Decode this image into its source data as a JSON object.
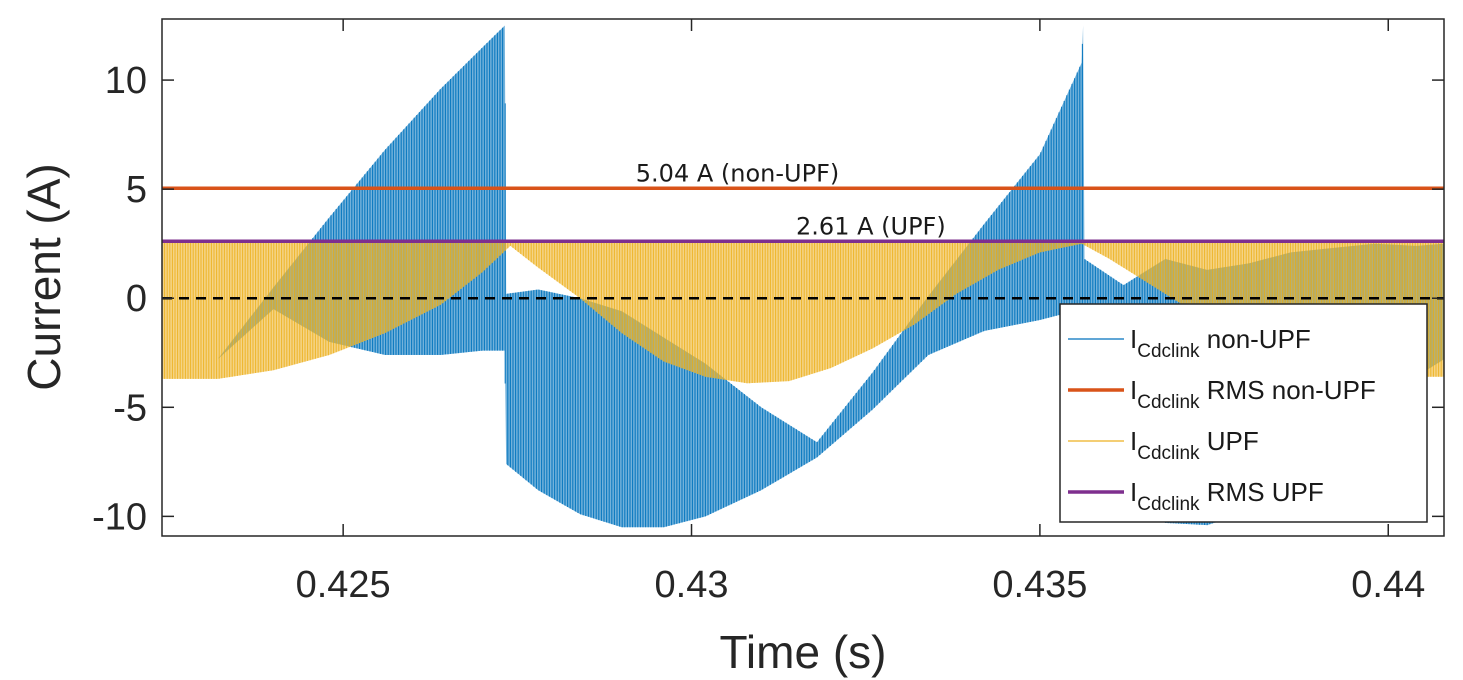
{
  "chart_data": {
    "type": "line",
    "title": "",
    "xlabel": "Time (s)",
    "ylabel": "Current (A)",
    "xlim": [
      0.4224,
      0.4408
    ],
    "ylim": [
      -10.9,
      12.8
    ],
    "xticks": [
      0.425,
      0.43,
      0.435,
      0.44
    ],
    "xtick_labels": [
      "0.425",
      "0.43",
      "0.435",
      "0.44"
    ],
    "yticks": [
      -10,
      -5,
      0,
      5,
      10
    ],
    "ytick_labels": [
      "-10",
      "-5",
      "0",
      "5",
      "10"
    ],
    "grid": false,
    "legend_position": "bottom-right",
    "series": [
      {
        "id": "nonupf",
        "legend_base": "I",
        "legend_sub": "Cdclink",
        "legend_rest": " non-UPF",
        "color": "#0072BD",
        "style": "switching envelope",
        "x": [
          0.4224,
          0.4232,
          0.424,
          0.4248,
          0.4256,
          0.4264,
          0.427,
          0.42732,
          0.42734,
          0.4278,
          0.4284,
          0.429,
          0.4296,
          0.4302,
          0.431,
          0.4318,
          0.4326,
          0.4334,
          0.4342,
          0.435,
          0.4356,
          0.43562,
          0.43564,
          0.4362,
          0.4368,
          0.4374,
          0.438,
          0.4386,
          0.4392,
          0.4398,
          0.4404,
          0.4408
        ],
        "upper": [
          -5.8,
          -2.8,
          0.5,
          3.7,
          6.8,
          9.6,
          11.5,
          12.5,
          0.2,
          0.4,
          0.0,
          -0.6,
          -1.8,
          -3.0,
          -5.0,
          -6.6,
          -3.4,
          0.1,
          3.4,
          6.6,
          10.8,
          12.5,
          1.8,
          0.6,
          1.8,
          1.3,
          1.6,
          2.1,
          2.3,
          2.5,
          2.4,
          2.5
        ],
        "lower": [
          -5.8,
          -2.8,
          -0.5,
          -2.0,
          -2.6,
          -2.6,
          -2.4,
          -2.4,
          -7.6,
          -8.8,
          -9.9,
          -10.5,
          -10.5,
          -10.0,
          -8.8,
          -7.3,
          -5.1,
          -2.6,
          -1.5,
          -1.0,
          -0.5,
          -0.5,
          -7.5,
          -9.5,
          -10.3,
          -10.4,
          -9.8,
          -9.0,
          -7.5,
          -5.6,
          -3.6,
          -2.8
        ]
      },
      {
        "id": "nonupf_rms",
        "legend_base": "I",
        "legend_sub": "Cdclink",
        "legend_rest": " RMS non-UPF",
        "color": "#D95319",
        "value": 5.04
      },
      {
        "id": "upf",
        "legend_base": "I",
        "legend_sub": "Cdclink",
        "legend_rest": " UPF",
        "color": "#EDB120",
        "style": "switching envelope",
        "x": [
          0.4224,
          0.4232,
          0.424,
          0.4248,
          0.4256,
          0.4264,
          0.427,
          0.4274,
          0.4278,
          0.4284,
          0.429,
          0.4296,
          0.4302,
          0.4308,
          0.4314,
          0.432,
          0.4326,
          0.4332,
          0.4338,
          0.4344,
          0.435,
          0.4356,
          0.436,
          0.4366,
          0.4372,
          0.4378,
          0.4384,
          0.439,
          0.4396,
          0.4402,
          0.4408
        ],
        "upper": [
          2.6,
          2.6,
          2.6,
          2.6,
          2.6,
          2.6,
          2.6,
          2.6,
          2.6,
          2.6,
          2.6,
          2.6,
          2.6,
          2.6,
          2.6,
          2.6,
          2.6,
          2.6,
          2.6,
          2.6,
          2.6,
          2.6,
          2.6,
          2.6,
          2.6,
          2.6,
          2.6,
          2.6,
          2.6,
          2.6,
          2.6
        ],
        "lower": [
          -3.7,
          -3.7,
          -3.3,
          -2.6,
          -1.6,
          -0.3,
          1.2,
          2.4,
          1.4,
          0.0,
          -1.6,
          -2.9,
          -3.6,
          -3.9,
          -3.8,
          -3.2,
          -2.3,
          -1.2,
          0.2,
          1.3,
          2.1,
          2.5,
          1.8,
          0.6,
          -0.6,
          -1.6,
          -2.4,
          -3.0,
          -3.4,
          -3.6,
          -3.6
        ]
      },
      {
        "id": "upf_rms",
        "legend_base": "I",
        "legend_sub": "Cdclink",
        "legend_rest": " RMS UPF",
        "color": "#7E2F8E",
        "value": 2.61
      }
    ],
    "zero_line": {
      "y": 0,
      "color": "#000000",
      "style": "dashed"
    },
    "annotations": [
      {
        "text": "5.04 A (non-UPF)",
        "x": 0.4292,
        "y": 5.04
      },
      {
        "text": "2.61 A (UPF)",
        "x": 0.4315,
        "y": 2.61
      }
    ]
  }
}
